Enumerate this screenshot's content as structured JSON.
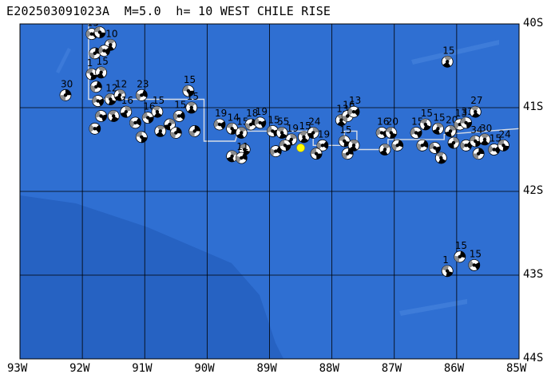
{
  "title": "E202503091023A  M=5.0  h= 10 WEST CHILE RISE",
  "map": {
    "lon_range": [
      -93,
      -85
    ],
    "lat_range": [
      -44,
      -40
    ],
    "ocean_color": "#2f6fd2",
    "deep_basin_color": "#2660c0",
    "ridge_color": "#d8dde6",
    "grid_color": "#000000",
    "event_marker_color": "#ffff00",
    "event": {
      "lon": -88.5,
      "lat": -41.48
    },
    "x_ticks": [
      {
        "lon": -93,
        "label": "93W"
      },
      {
        "lon": -92,
        "label": "92W"
      },
      {
        "lon": -91,
        "label": "91W"
      },
      {
        "lon": -90,
        "label": "90W"
      },
      {
        "lon": -89,
        "label": "89W"
      },
      {
        "lon": -88,
        "label": "88W"
      },
      {
        "lon": -87,
        "label": "87W"
      },
      {
        "lon": -86,
        "label": "86W"
      },
      {
        "lon": -85,
        "label": "85W"
      }
    ],
    "y_ticks": [
      {
        "lat": -40,
        "label": "40S"
      },
      {
        "lat": -41,
        "label": "41S"
      },
      {
        "lat": -42,
        "label": "42S"
      },
      {
        "lat": -43,
        "label": "43S"
      },
      {
        "lat": -44,
        "label": "44S"
      }
    ],
    "mechanisms": [
      {
        "lon": -92.27,
        "lat": -40.85,
        "depth": "30"
      },
      {
        "lon": -91.85,
        "lat": -40.12,
        "depth": "15"
      },
      {
        "lon": -91.72,
        "lat": -40.1,
        "depth": "21"
      },
      {
        "lon": -91.55,
        "lat": -40.25,
        "depth": "10"
      },
      {
        "lon": -91.8,
        "lat": -40.35,
        "depth": ""
      },
      {
        "lon": -91.65,
        "lat": -40.32,
        "depth": ""
      },
      {
        "lon": -91.85,
        "lat": -40.6,
        "depth": "1"
      },
      {
        "lon": -91.7,
        "lat": -40.58,
        "depth": "15"
      },
      {
        "lon": -91.78,
        "lat": -40.75,
        "depth": ""
      },
      {
        "lon": -91.75,
        "lat": -40.92,
        "depth": ""
      },
      {
        "lon": -91.55,
        "lat": -40.9,
        "depth": "12"
      },
      {
        "lon": -91.4,
        "lat": -40.85,
        "depth": "12"
      },
      {
        "lon": -91.05,
        "lat": -40.85,
        "depth": "23"
      },
      {
        "lon": -91.7,
        "lat": -41.1,
        "depth": ""
      },
      {
        "lon": -91.5,
        "lat": -41.1,
        "depth": ""
      },
      {
        "lon": -91.3,
        "lat": -41.05,
        "depth": "16"
      },
      {
        "lon": -91.15,
        "lat": -41.18,
        "depth": ""
      },
      {
        "lon": -90.95,
        "lat": -41.12,
        "depth": "16"
      },
      {
        "lon": -90.8,
        "lat": -41.05,
        "depth": "15"
      },
      {
        "lon": -90.6,
        "lat": -41.2,
        "depth": ""
      },
      {
        "lon": -90.45,
        "lat": -41.1,
        "depth": "15"
      },
      {
        "lon": -90.3,
        "lat": -40.8,
        "depth": "15"
      },
      {
        "lon": -90.25,
        "lat": -41.0,
        "depth": "15"
      },
      {
        "lon": -90.2,
        "lat": -41.28,
        "depth": ""
      },
      {
        "lon": -91.8,
        "lat": -41.25,
        "depth": ""
      },
      {
        "lon": -91.05,
        "lat": -41.35,
        "depth": ""
      },
      {
        "lon": -90.75,
        "lat": -41.28,
        "depth": ""
      },
      {
        "lon": -90.5,
        "lat": -41.3,
        "depth": ""
      },
      {
        "lon": -89.8,
        "lat": -41.2,
        "depth": "19"
      },
      {
        "lon": -89.6,
        "lat": -41.25,
        "depth": "14"
      },
      {
        "lon": -89.45,
        "lat": -41.3,
        "depth": "15"
      },
      {
        "lon": -89.3,
        "lat": -41.2,
        "depth": "18"
      },
      {
        "lon": -89.15,
        "lat": -41.18,
        "depth": "19"
      },
      {
        "lon": -89.4,
        "lat": -41.5,
        "depth": ""
      },
      {
        "lon": -89.6,
        "lat": -41.58,
        "depth": ""
      },
      {
        "lon": -89.45,
        "lat": -41.6,
        "depth": "11"
      },
      {
        "lon": -88.95,
        "lat": -41.28,
        "depth": "15"
      },
      {
        "lon": -88.8,
        "lat": -41.3,
        "depth": "55"
      },
      {
        "lon": -88.65,
        "lat": -41.38,
        "depth": "19"
      },
      {
        "lon": -88.9,
        "lat": -41.52,
        "depth": ""
      },
      {
        "lon": -88.75,
        "lat": -41.45,
        "depth": ""
      },
      {
        "lon": -88.45,
        "lat": -41.35,
        "depth": "15"
      },
      {
        "lon": -88.3,
        "lat": -41.3,
        "depth": "24"
      },
      {
        "lon": -88.15,
        "lat": -41.45,
        "depth": "19"
      },
      {
        "lon": -88.25,
        "lat": -41.55,
        "depth": ""
      },
      {
        "lon": -87.85,
        "lat": -41.15,
        "depth": "13"
      },
      {
        "lon": -87.75,
        "lat": -41.1,
        "depth": "16"
      },
      {
        "lon": -87.65,
        "lat": -41.05,
        "depth": "13"
      },
      {
        "lon": -87.8,
        "lat": -41.4,
        "depth": "15"
      },
      {
        "lon": -87.65,
        "lat": -41.45,
        "depth": ""
      },
      {
        "lon": -87.75,
        "lat": -41.55,
        "depth": ""
      },
      {
        "lon": -87.2,
        "lat": -41.3,
        "depth": "16"
      },
      {
        "lon": -87.05,
        "lat": -41.3,
        "depth": "20"
      },
      {
        "lon": -87.15,
        "lat": -41.5,
        "depth": ""
      },
      {
        "lon": -86.95,
        "lat": -41.45,
        "depth": ""
      },
      {
        "lon": -86.65,
        "lat": -41.3,
        "depth": "15"
      },
      {
        "lon": -86.5,
        "lat": -41.2,
        "depth": "15"
      },
      {
        "lon": -86.3,
        "lat": -41.25,
        "depth": "15"
      },
      {
        "lon": -86.55,
        "lat": -41.45,
        "depth": ""
      },
      {
        "lon": -86.35,
        "lat": -41.48,
        "depth": ""
      },
      {
        "lon": -86.25,
        "lat": -41.6,
        "depth": ""
      },
      {
        "lon": -86.1,
        "lat": -41.28,
        "depth": "20"
      },
      {
        "lon": -85.95,
        "lat": -41.2,
        "depth": "13"
      },
      {
        "lon": -85.85,
        "lat": -41.18,
        "depth": "33"
      },
      {
        "lon": -85.7,
        "lat": -41.05,
        "depth": "27"
      },
      {
        "lon": -86.05,
        "lat": -41.42,
        "depth": ""
      },
      {
        "lon": -85.85,
        "lat": -41.45,
        "depth": ""
      },
      {
        "lon": -85.7,
        "lat": -41.4,
        "depth": "34"
      },
      {
        "lon": -85.55,
        "lat": -41.38,
        "depth": "30"
      },
      {
        "lon": -85.65,
        "lat": -41.55,
        "depth": ""
      },
      {
        "lon": -85.4,
        "lat": -41.5,
        "depth": "15"
      },
      {
        "lon": -85.25,
        "lat": -41.45,
        "depth": "24"
      },
      {
        "lon": -86.15,
        "lat": -40.45,
        "depth": "15"
      },
      {
        "lon": -85.95,
        "lat": -42.78,
        "depth": "15"
      },
      {
        "lon": -85.72,
        "lat": -42.88,
        "depth": "15"
      },
      {
        "lon": -86.15,
        "lat": -42.95,
        "depth": "1"
      }
    ]
  }
}
